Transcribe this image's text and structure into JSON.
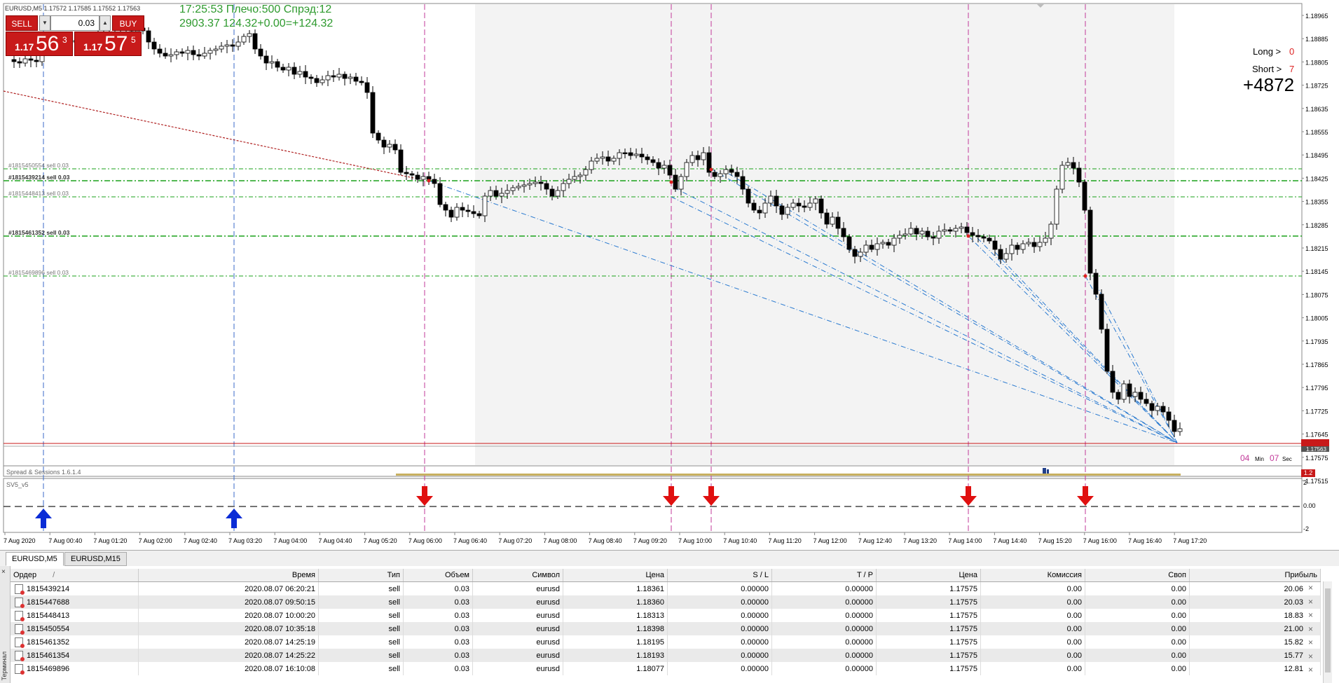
{
  "chart": {
    "symbol_info": "EURUSD,M5  1.17572 1.17585 1.17552 1.17563",
    "time_line": "17:25:53 Плечо:500 Спрэд:12",
    "pnl_line": "2903.37   124.32+0.00=+124.32",
    "long_label": "Long >",
    "long_value": "0",
    "short_label": "Short >",
    "short_value": "7",
    "profit_big": "+4872",
    "timer_min_value": "04",
    "timer_min_label": "Min",
    "timer_sec_value": "07",
    "timer_sec_label": "Sec",
    "indicator1_label": "Spread & Sessions 1.6.1.4",
    "indicator1_value": "1.2",
    "indicator2_label": "SV5_v5",
    "indicator2_scale": [
      "2",
      "0.00",
      "-2"
    ],
    "current_price_tag": "1.17563",
    "price_labels": [
      "1.18965",
      "1.18885",
      "1.18805",
      "1.18725",
      "1.18635",
      "1.18555",
      "1.18495",
      "1.18425",
      "1.18355",
      "1.18285",
      "1.18215",
      "1.18145",
      "1.18075",
      "1.18005",
      "1.17935",
      "1.17865",
      "1.17795",
      "1.17725",
      "1.17645",
      "1.17575",
      "1.17515"
    ],
    "time_labels": [
      "7 Aug 2020",
      "7 Aug 00:40",
      "7 Aug 01:20",
      "7 Aug 02:00",
      "7 Aug 02:40",
      "7 Aug 03:20",
      "7 Aug 04:00",
      "7 Aug 04:40",
      "7 Aug 05:20",
      "7 Aug 06:00",
      "7 Aug 06:40",
      "7 Aug 07:20",
      "7 Aug 08:00",
      "7 Aug 08:40",
      "7 Aug 09:20",
      "7 Aug 10:00",
      "7 Aug 10:40",
      "7 Aug 11:20",
      "7 Aug 12:00",
      "7 Aug 12:40",
      "7 Aug 13:20",
      "7 Aug 14:00",
      "7 Aug 14:40",
      "7 Aug 15:20",
      "7 Aug 16:00",
      "7 Aug 16:40",
      "7 Aug 17:20"
    ],
    "order_level_labels": [
      {
        "text": "#1815450554 sell 0.03",
        "price": 1.18398
      },
      {
        "text": "#1815439214 sell 0.03",
        "price": 1.18361
      },
      {
        "text": "#1815448413 sell 0.03",
        "price": 1.18313
      },
      {
        "text": "#1815461352 sell 0.03",
        "price": 1.18195
      },
      {
        "text": "#1815469896 sell 0.03",
        "price": 1.18077
      }
    ],
    "colors": {
      "up_arrow": "#0a2cd6",
      "down_arrow": "#e01010",
      "order_line": "#1aa11a",
      "session_line": "#c23a9a",
      "trend": "#2a7ad0"
    }
  },
  "trade_panel": {
    "sell_label": "SELL",
    "buy_label": "BUY",
    "lot": "0.03",
    "sell_small": "1.17",
    "sell_big": "56",
    "sell_sup": "3",
    "buy_small": "1.17",
    "buy_big": "57",
    "buy_sup": "5"
  },
  "tabs": [
    "EURUSD,M5",
    "EURUSD,M15"
  ],
  "terminal": {
    "side_label": "Терминал",
    "columns": [
      "Ордер",
      "/",
      "Время",
      "Тип",
      "Объем",
      "Символ",
      "Цена",
      "S / L",
      "T / P",
      "Цена",
      "Комиссия",
      "Своп",
      "Прибыль"
    ],
    "rows": [
      [
        "1815439214",
        "2020.08.07 06:20:21",
        "sell",
        "0.03",
        "eurusd",
        "1.18361",
        "0.00000",
        "0.00000",
        "1.17575",
        "0.00",
        "0.00",
        "20.06"
      ],
      [
        "1815447688",
        "2020.08.07 09:50:15",
        "sell",
        "0.03",
        "eurusd",
        "1.18360",
        "0.00000",
        "0.00000",
        "1.17575",
        "0.00",
        "0.00",
        "20.03"
      ],
      [
        "1815448413",
        "2020.08.07 10:00:20",
        "sell",
        "0.03",
        "eurusd",
        "1.18313",
        "0.00000",
        "0.00000",
        "1.17575",
        "0.00",
        "0.00",
        "18.83"
      ],
      [
        "1815450554",
        "2020.08.07 10:35:18",
        "sell",
        "0.03",
        "eurusd",
        "1.18398",
        "0.00000",
        "0.00000",
        "1.17575",
        "0.00",
        "0.00",
        "21.00"
      ],
      [
        "1815461352",
        "2020.08.07 14:25:19",
        "sell",
        "0.03",
        "eurusd",
        "1.18195",
        "0.00000",
        "0.00000",
        "1.17575",
        "0.00",
        "0.00",
        "15.82"
      ],
      [
        "1815461354",
        "2020.08.07 14:25:22",
        "sell",
        "0.03",
        "eurusd",
        "1.18193",
        "0.00000",
        "0.00000",
        "1.17575",
        "0.00",
        "0.00",
        "15.77"
      ],
      [
        "1815469896",
        "2020.08.07 16:10:08",
        "sell",
        "0.03",
        "eurusd",
        "1.18077",
        "0.00000",
        "0.00000",
        "1.17575",
        "0.00",
        "0.00",
        "12.81"
      ]
    ]
  }
}
